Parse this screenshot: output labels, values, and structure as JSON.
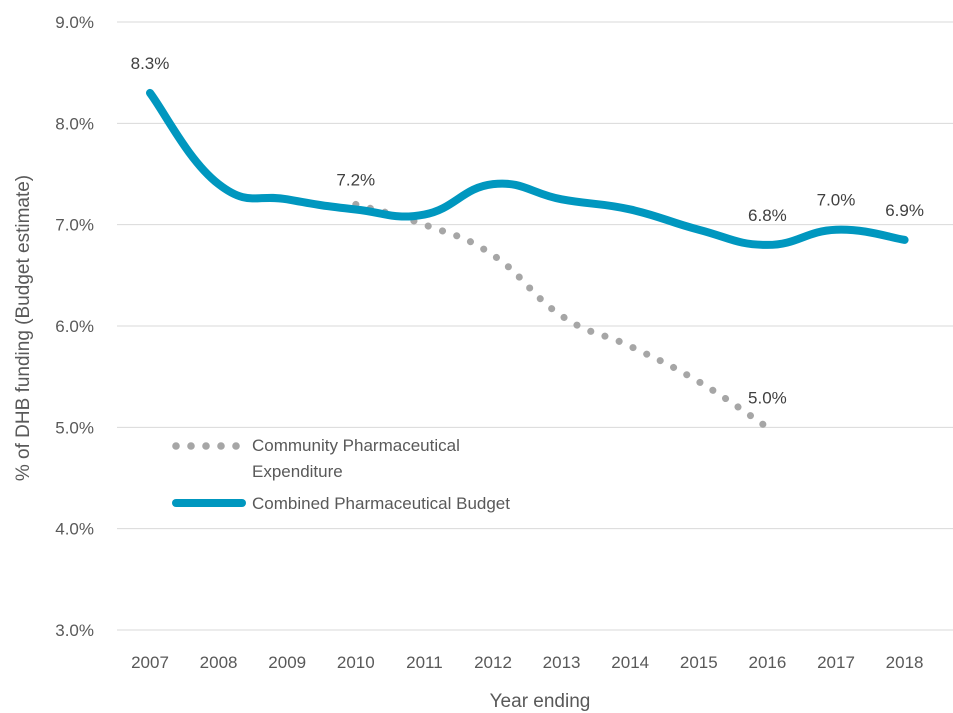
{
  "chart_data": {
    "type": "line",
    "categories": [
      "2007",
      "2008",
      "2009",
      "2010",
      "2011",
      "2012",
      "2013",
      "2014",
      "2015",
      "2016",
      "2017",
      "2018"
    ],
    "series": [
      {
        "name": "Community Pharmaceutical Expenditure",
        "style": "dotted",
        "color": "#a6a6a6",
        "values": [
          null,
          null,
          null,
          7.2,
          7.0,
          6.7,
          6.1,
          5.8,
          5.45,
          5.0,
          null,
          null
        ]
      },
      {
        "name": "Combined Pharmaceutical Budget",
        "style": "solid",
        "color": "#0097bf",
        "values": [
          8.3,
          7.4,
          7.25,
          7.15,
          7.1,
          7.4,
          7.25,
          7.15,
          6.95,
          6.8,
          6.95,
          6.85
        ]
      }
    ],
    "data_labels": [
      {
        "series": 1,
        "index": 0,
        "text": "8.3%"
      },
      {
        "series": 1,
        "index": 3,
        "text": "7.2%"
      },
      {
        "series": 1,
        "index": 9,
        "text": "6.8%"
      },
      {
        "series": 1,
        "index": 10,
        "text": "7.0%"
      },
      {
        "series": 1,
        "index": 11,
        "text": "6.9%"
      },
      {
        "series": 0,
        "index": 9,
        "text": "5.0%"
      }
    ],
    "y_ticks": [
      "3.0%",
      "4.0%",
      "5.0%",
      "6.0%",
      "7.0%",
      "8.0%",
      "9.0%"
    ],
    "ylim": [
      3.0,
      9.0
    ],
    "xlabel": "Year ending",
    "ylabel": "% of DHB funding (Budget estimate)",
    "grid": true,
    "legend_position": "inside-left"
  }
}
